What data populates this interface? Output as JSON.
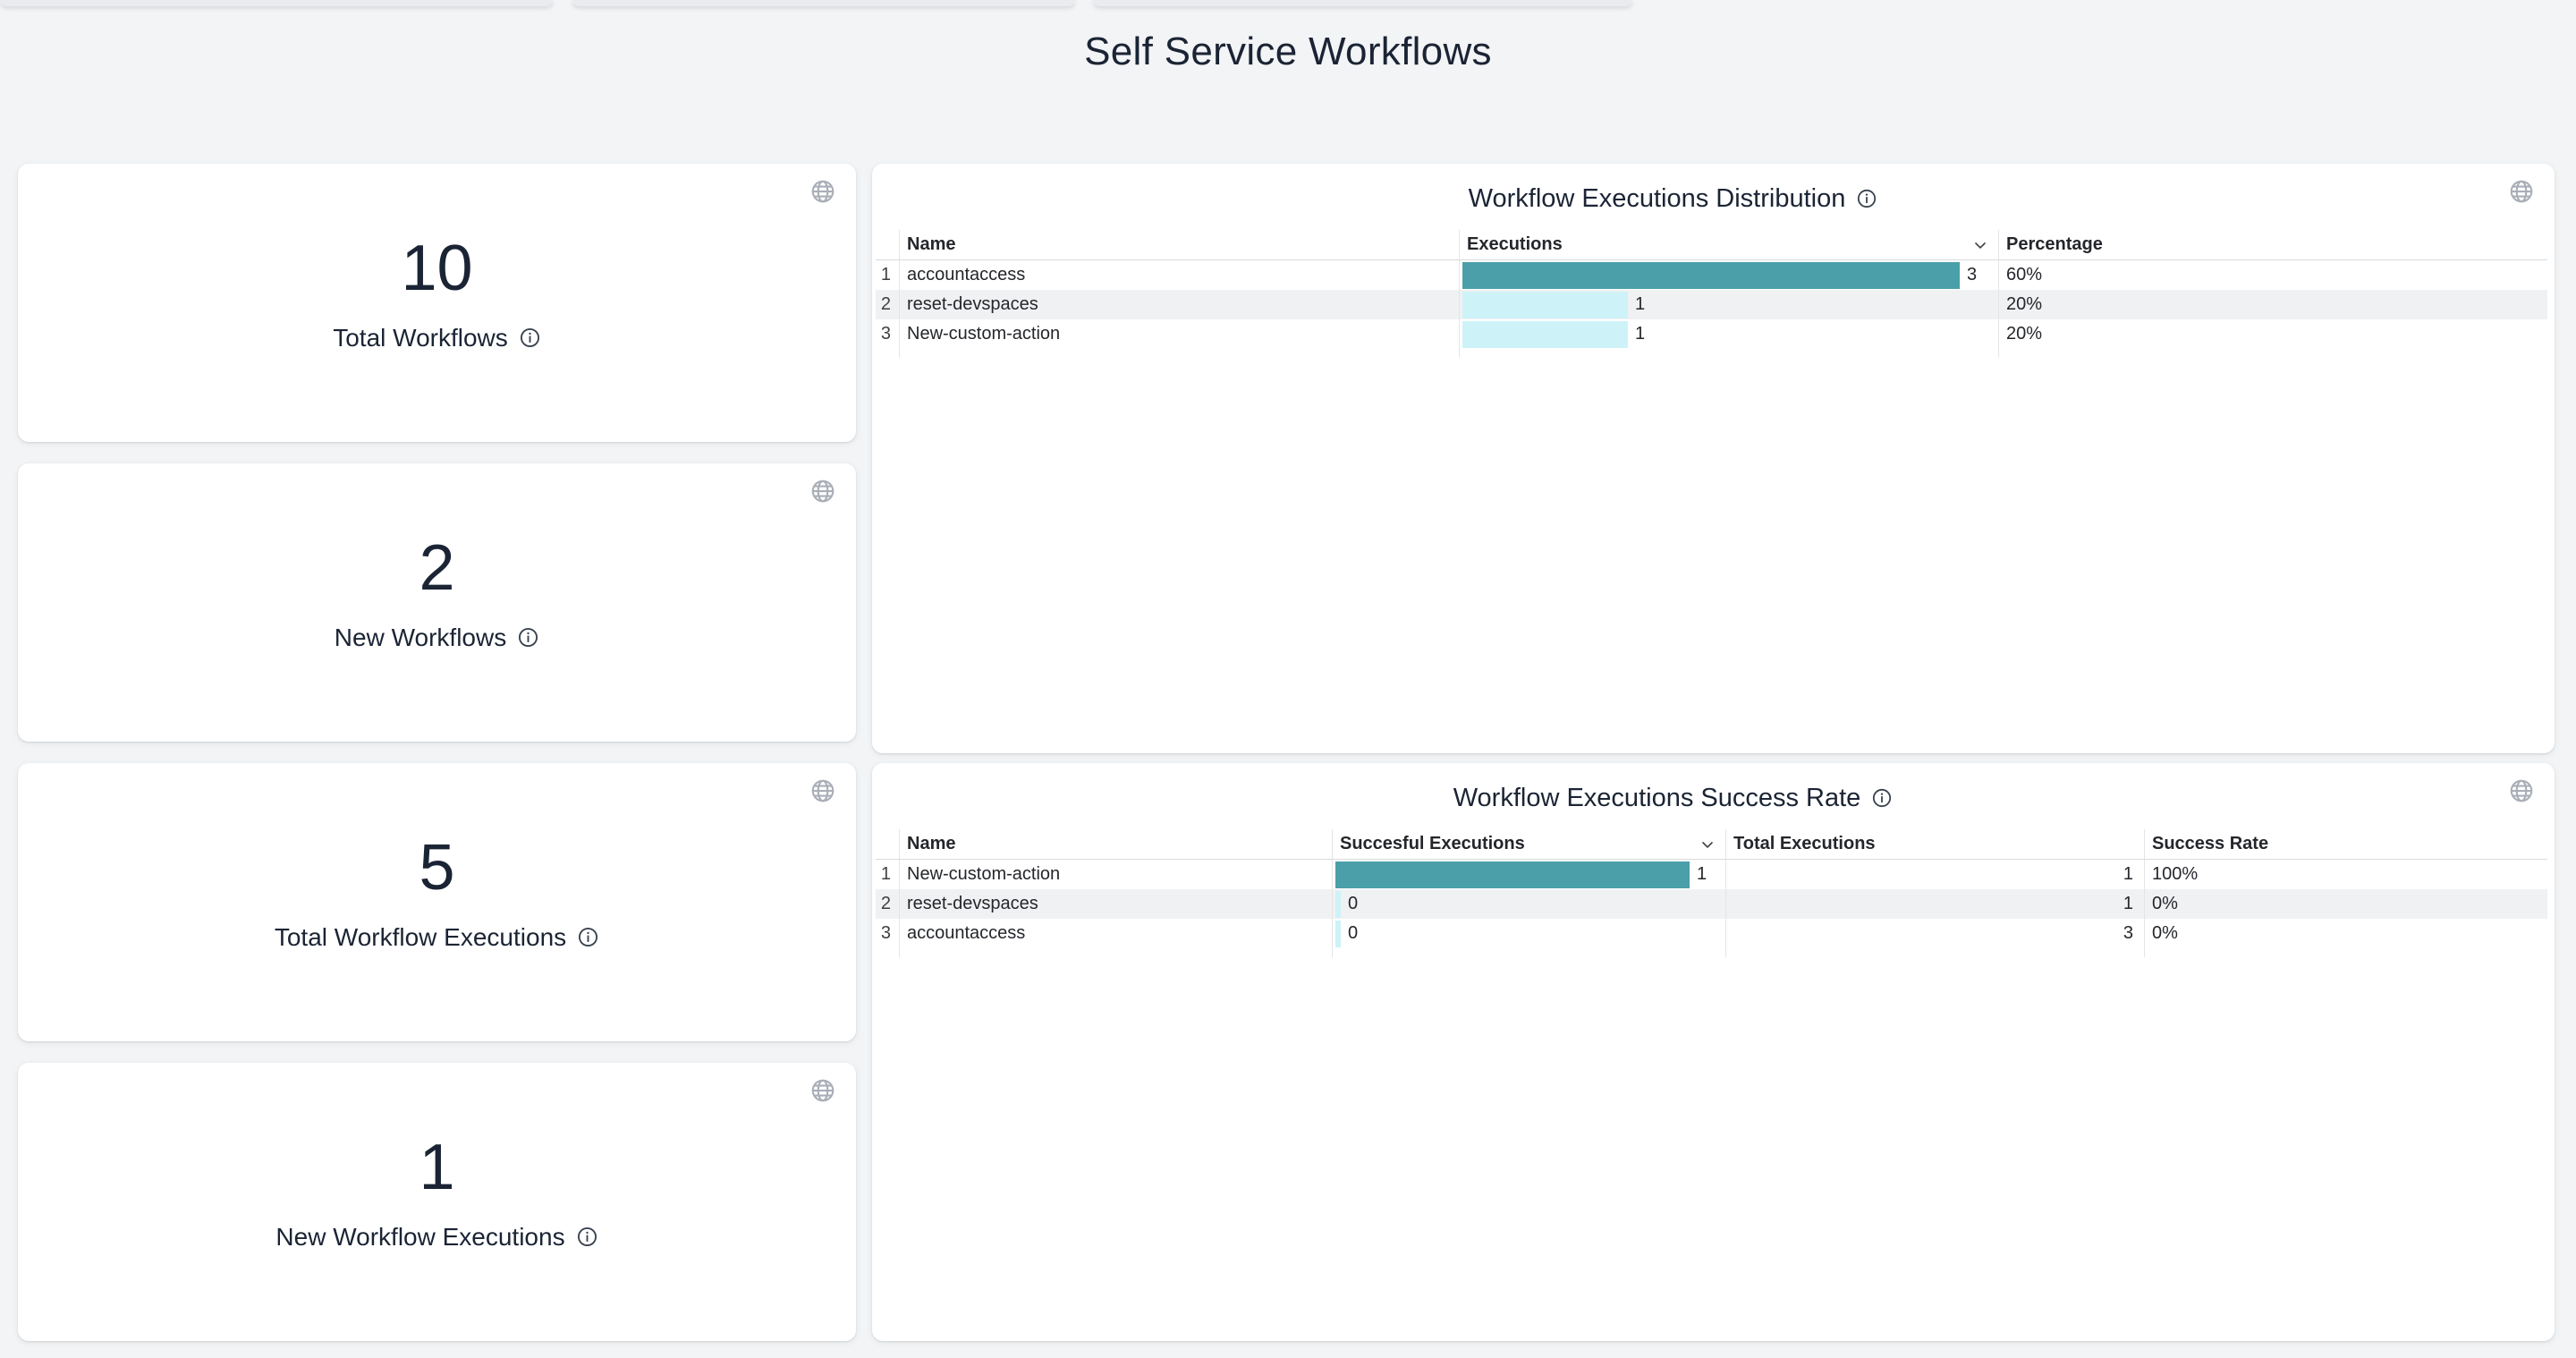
{
  "page": {
    "title": "Self Service Workflows"
  },
  "colors": {
    "background": "#f2f4f6",
    "card": "#ffffff",
    "heading_text": "#1b2434",
    "bar_primary": "#4a9fa9",
    "bar_secondary": "#cdf3f9",
    "row_stripe": "#f0f1f2"
  },
  "stats": [
    {
      "value": "10",
      "label": "Total Workflows"
    },
    {
      "value": "2",
      "label": "New Workflows"
    },
    {
      "value": "5",
      "label": "Total Workflow Executions"
    },
    {
      "value": "1",
      "label": "New Workflow Executions"
    }
  ],
  "tables": [
    {
      "title": "Workflow Executions Distribution",
      "columns": [
        "Name",
        "Executions",
        "Percentage"
      ],
      "sorted_column": "Executions",
      "bar_max": 3,
      "rows": [
        {
          "num": "1",
          "name": "accountaccess",
          "bar_value": 3,
          "bar_label": "3",
          "cells": [
            "60%"
          ]
        },
        {
          "num": "2",
          "name": "reset-devspaces",
          "bar_value": 1,
          "bar_label": "1",
          "cells": [
            "20%"
          ]
        },
        {
          "num": "3",
          "name": "New-custom-action",
          "bar_value": 1,
          "bar_label": "1",
          "cells": [
            "20%"
          ]
        }
      ]
    },
    {
      "title": "Workflow Executions Success Rate",
      "columns": [
        "Name",
        "Succesful Executions",
        "Total Executions",
        "Success Rate"
      ],
      "sorted_column": "Succesful Executions",
      "bar_max": 1,
      "rows": [
        {
          "num": "1",
          "name": "New-custom-action",
          "bar_value": 1,
          "bar_label": "1",
          "cells": [
            "1",
            "100%"
          ]
        },
        {
          "num": "2",
          "name": "reset-devspaces",
          "bar_value": 0,
          "bar_label": "0",
          "cells": [
            "1",
            "0%"
          ]
        },
        {
          "num": "3",
          "name": "accountaccess",
          "bar_value": 0,
          "bar_label": "0",
          "cells": [
            "3",
            "0%"
          ]
        }
      ]
    }
  ]
}
